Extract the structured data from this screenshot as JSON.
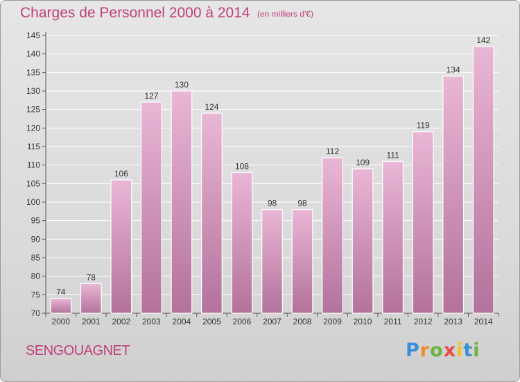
{
  "title": "Charges de Personnel 2000 à 2014",
  "subtitle": "(en milliers d'€)",
  "commune": "SENGOUAGNET",
  "brand": {
    "letters": [
      "P",
      "r",
      "o",
      "x",
      "i",
      "t",
      "i"
    ],
    "colors": [
      "#3a8fd6",
      "#f08a2a",
      "#6cb33f",
      "#e84a4a",
      "#f3c417",
      "#3a8fd6",
      "#6cb33f"
    ]
  },
  "colors": {
    "bar_light": "#eab6d6",
    "bar_dark": "#b3729a",
    "title": "#c0407a"
  },
  "chart_data": {
    "type": "bar",
    "categories": [
      "2000",
      "2001",
      "2002",
      "2003",
      "2004",
      "2005",
      "2006",
      "2007",
      "2008",
      "2009",
      "2010",
      "2011",
      "2012",
      "2013",
      "2014"
    ],
    "values": [
      74,
      78,
      106,
      127,
      130,
      124,
      108,
      98,
      98,
      112,
      109,
      111,
      119,
      134,
      142
    ],
    "ylim": [
      70,
      145
    ],
    "yticks": [
      70,
      75,
      80,
      85,
      90,
      95,
      100,
      105,
      110,
      115,
      120,
      125,
      130,
      135,
      140,
      145
    ],
    "grid": true,
    "data_labels": true
  }
}
